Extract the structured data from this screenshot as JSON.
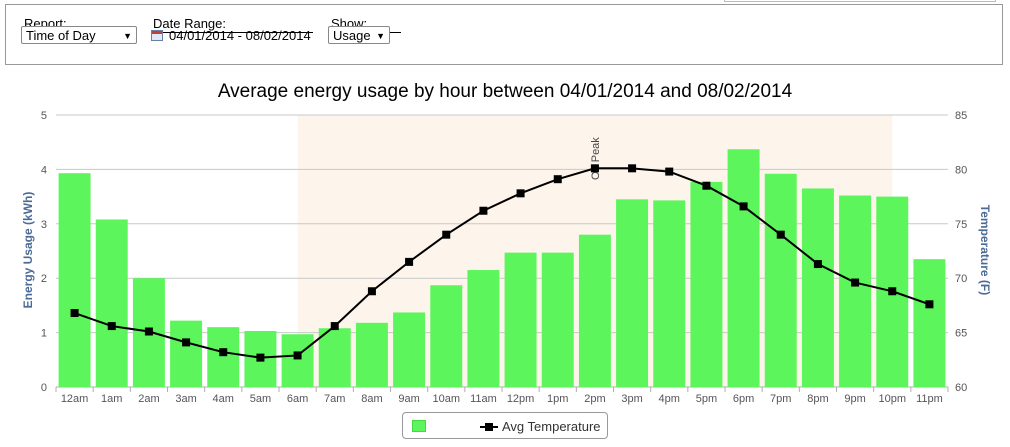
{
  "filters": {
    "report": {
      "label": "Report:",
      "value": "Time of Day"
    },
    "date_range": {
      "label": "Date Range:",
      "value": "04/01/2014 - 08/02/2014"
    },
    "show": {
      "label": "Show:",
      "value": "Usage"
    }
  },
  "colors": {
    "bars": "#5cf55c",
    "line": "#000000",
    "peak_band": "#fdf5ec",
    "axis_title": "#4b6a96"
  },
  "chart_data": {
    "type": "bar",
    "title": "Average energy usage by hour between 04/01/2014 and 08/02/2014",
    "categories": [
      "12am",
      "1am",
      "2am",
      "3am",
      "4am",
      "5am",
      "6am",
      "7am",
      "8am",
      "9am",
      "10am",
      "11am",
      "12pm",
      "1pm",
      "2pm",
      "3pm",
      "4pm",
      "5pm",
      "6pm",
      "7pm",
      "8pm",
      "9pm",
      "10pm",
      "11pm"
    ],
    "series": [
      {
        "type": "bar",
        "axis": "left",
        "values": [
          3.93,
          3.08,
          2.0,
          1.22,
          1.1,
          1.03,
          0.97,
          1.08,
          1.18,
          1.37,
          1.87,
          2.15,
          2.47,
          2.47,
          2.8,
          3.45,
          3.43,
          3.77,
          4.37,
          3.92,
          3.65,
          3.52,
          3.5,
          2.35
        ]
      },
      {
        "name": "Avg Temperature",
        "type": "line",
        "axis": "right",
        "values": [
          66.8,
          65.6,
          65.1,
          64.1,
          63.2,
          62.7,
          62.9,
          65.6,
          68.8,
          71.5,
          74.0,
          76.2,
          77.8,
          79.1,
          80.1,
          80.1,
          79.8,
          78.5,
          76.6,
          74.0,
          71.3,
          69.6,
          68.8,
          67.6
        ]
      }
    ],
    "ylabel": "Energy Usage (kWh)",
    "ylim": [
      0,
      5
    ],
    "yticks": [
      "0",
      "1",
      "2",
      "3",
      "4",
      "5"
    ],
    "y2label": "Temperature (F)",
    "y2lim": [
      60,
      85
    ],
    "y2ticks": [
      "60",
      "65",
      "70",
      "75",
      "80",
      "85"
    ],
    "band": {
      "from": "6am",
      "to": "10pm",
      "label": "On Peak"
    },
    "grid": true,
    "legend_position": "bottom-center"
  }
}
